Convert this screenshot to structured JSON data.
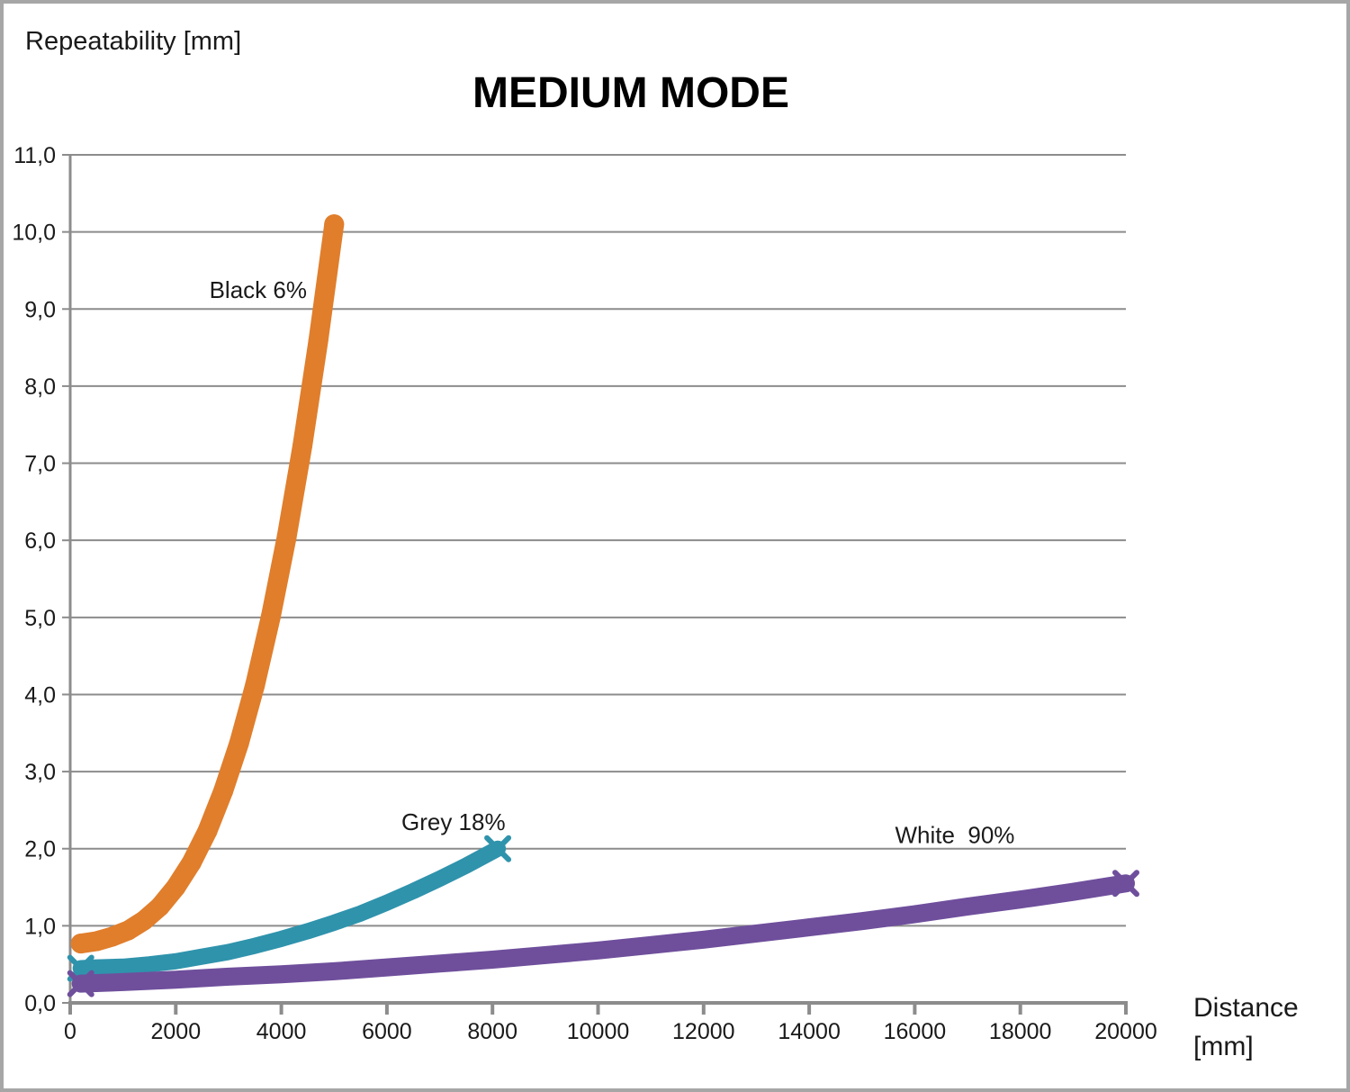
{
  "chart_data": {
    "type": "line",
    "title": "MEDIUM MODE",
    "ylabel": "Repeatability [mm]",
    "xlabel": "Distance [mm]",
    "xlabel_lines": [
      "Distance",
      "[mm]"
    ],
    "xlim": [
      0,
      20000
    ],
    "ylim": [
      0,
      11
    ],
    "x_ticks": [
      0,
      2000,
      4000,
      6000,
      8000,
      10000,
      12000,
      14000,
      16000,
      18000,
      20000
    ],
    "y_tick_labels": [
      "0,0",
      "1,0",
      "2,0",
      "3,0",
      "4,0",
      "5,0",
      "6,0",
      "7,0",
      "8,0",
      "9,0",
      "10,0",
      "11,0"
    ],
    "grid": "horizontal-major",
    "legend_position": "none-inline-labels",
    "axis_color": "#8c8c8c",
    "text_color": "#1a1a1a",
    "series": [
      {
        "name": "Black 6%",
        "color": "#e07e2c",
        "marker": "circle",
        "line_width": 22,
        "points": [
          [
            200,
            0.77
          ],
          [
            500,
            0.8
          ],
          [
            800,
            0.86
          ],
          [
            1100,
            0.94
          ],
          [
            1400,
            1.07
          ],
          [
            1700,
            1.25
          ],
          [
            2000,
            1.5
          ],
          [
            2300,
            1.82
          ],
          [
            2600,
            2.23
          ],
          [
            2900,
            2.75
          ],
          [
            3200,
            3.37
          ],
          [
            3500,
            4.12
          ],
          [
            3800,
            5.01
          ],
          [
            4100,
            6.04
          ],
          [
            4400,
            7.23
          ],
          [
            4700,
            8.59
          ],
          [
            5000,
            10.1
          ]
        ]
      },
      {
        "name": "Grey 18%",
        "color": "#2f93ac",
        "marker": "x",
        "line_width": 18,
        "points": [
          [
            200,
            0.45
          ],
          [
            500,
            0.46
          ],
          [
            1000,
            0.47
          ],
          [
            1500,
            0.5
          ],
          [
            2000,
            0.54
          ],
          [
            2500,
            0.6
          ],
          [
            3000,
            0.66
          ],
          [
            3500,
            0.74
          ],
          [
            4000,
            0.83
          ],
          [
            4500,
            0.93
          ],
          [
            5000,
            1.04
          ],
          [
            5500,
            1.16
          ],
          [
            6000,
            1.3
          ],
          [
            6500,
            1.45
          ],
          [
            7000,
            1.61
          ],
          [
            7500,
            1.78
          ],
          [
            8100,
            2.0
          ]
        ]
      },
      {
        "name": "White 90%",
        "color": "#6f4f9c",
        "marker": "x",
        "line_width": 20,
        "points": [
          [
            200,
            0.25
          ],
          [
            1000,
            0.27
          ],
          [
            2000,
            0.3
          ],
          [
            3000,
            0.34
          ],
          [
            4000,
            0.37
          ],
          [
            5000,
            0.41
          ],
          [
            6000,
            0.46
          ],
          [
            7000,
            0.51
          ],
          [
            8000,
            0.56
          ],
          [
            9000,
            0.62
          ],
          [
            10000,
            0.68
          ],
          [
            11000,
            0.75
          ],
          [
            12000,
            0.82
          ],
          [
            13000,
            0.9
          ],
          [
            14000,
            0.98
          ],
          [
            15000,
            1.06
          ],
          [
            16000,
            1.15
          ],
          [
            17000,
            1.25
          ],
          [
            18000,
            1.34
          ],
          [
            19000,
            1.44
          ],
          [
            20000,
            1.55
          ]
        ]
      }
    ],
    "annotations": [
      {
        "text": "Black 6%",
        "x": 3560,
        "y": 9.25
      },
      {
        "text": "Grey 18%",
        "x": 7260,
        "y": 2.35
      },
      {
        "text": "White  90%",
        "x": 16760,
        "y": 2.18
      }
    ]
  }
}
